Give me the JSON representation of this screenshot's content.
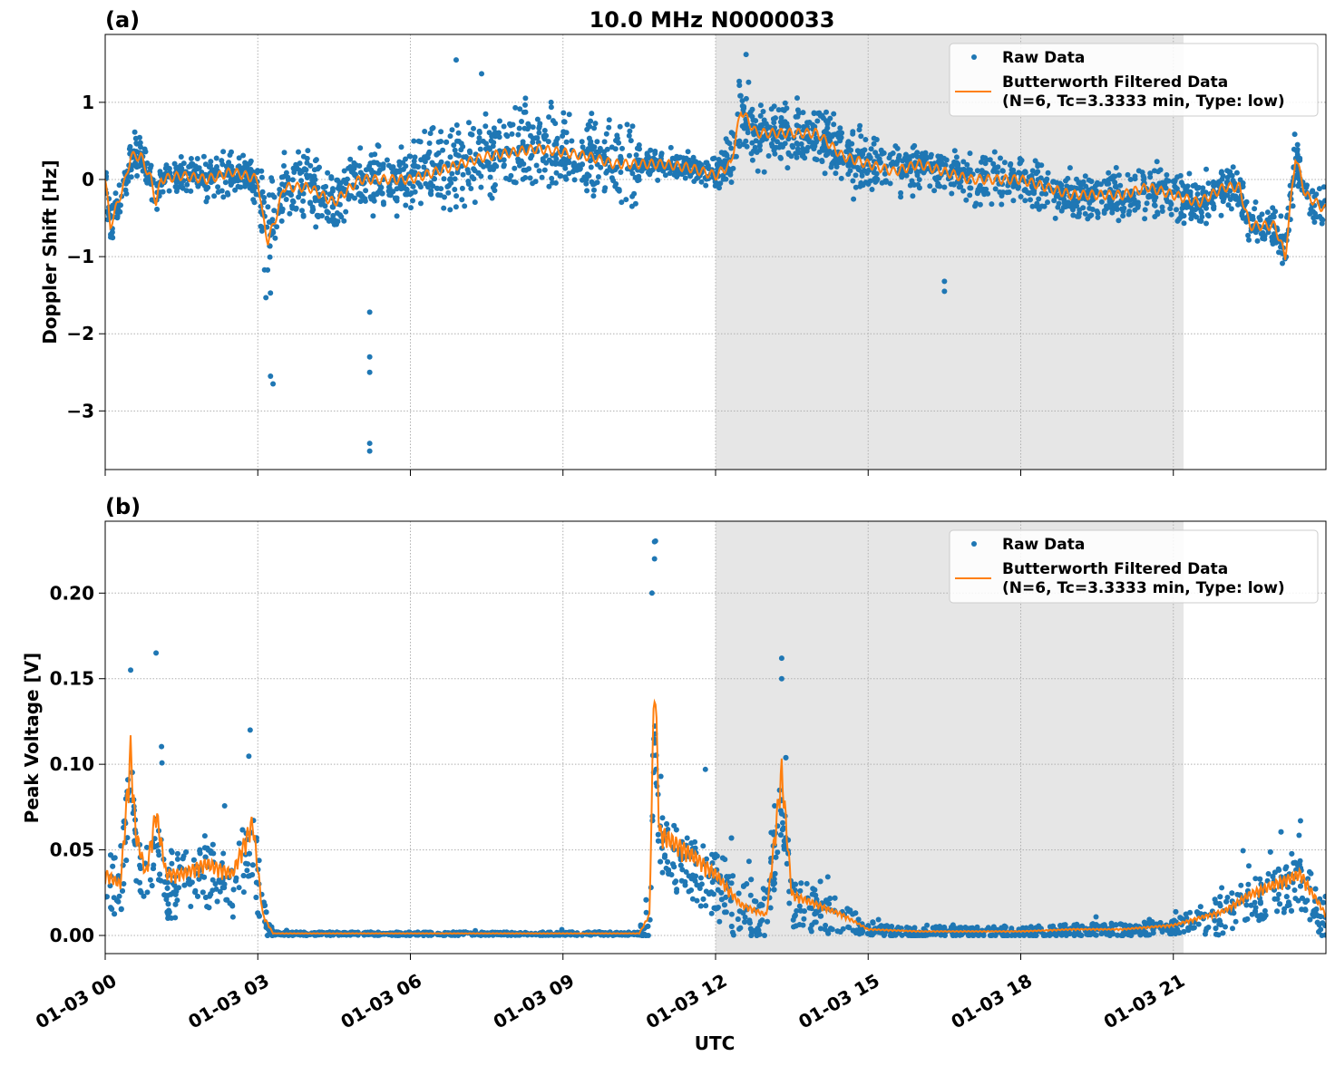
{
  "title": "10.0 MHz N0000033",
  "colors": {
    "raw": "#1f77b4",
    "filtered": "#ff7f0e",
    "shade": "#e6e6e6"
  },
  "chart_data": [
    {
      "type": "scatter",
      "panel_label": "(a)",
      "ylabel": "Doppler Shift [Hz]",
      "xlabel": "",
      "xlim_hours": [
        0,
        24
      ],
      "ylim": [
        -3.76,
        1.88
      ],
      "yticks": [
        1,
        0,
        -1,
        -2,
        -3
      ],
      "ytick_labels": [
        "1",
        "0",
        "−1",
        "−2",
        "−3"
      ],
      "grid": true,
      "shaded_interval_hours": [
        12,
        21.2
      ],
      "legend": {
        "placement": "top-right",
        "entries": [
          "Raw Data",
          "Butterworth Filtered Data",
          "(N=6, Tc=3.3333 min, Type: low)"
        ]
      },
      "filtered": [
        [
          0,
          0
        ],
        [
          0.1,
          -0.6
        ],
        [
          0.2,
          -0.4
        ],
        [
          0.4,
          0
        ],
        [
          0.5,
          0.3
        ],
        [
          0.7,
          0.3
        ],
        [
          0.9,
          0
        ],
        [
          1,
          -0.3
        ],
        [
          1.1,
          0
        ],
        [
          1.5,
          0.05
        ],
        [
          2,
          0
        ],
        [
          2.5,
          0.1
        ],
        [
          3,
          0
        ],
        [
          3.1,
          -0.5
        ],
        [
          3.2,
          -0.8
        ],
        [
          3.4,
          -0.4
        ],
        [
          3.5,
          -0.1
        ],
        [
          4,
          -0.1
        ],
        [
          4.5,
          -0.3
        ],
        [
          5,
          0
        ],
        [
          5.5,
          0
        ],
        [
          6,
          0
        ],
        [
          6.5,
          0.1
        ],
        [
          7,
          0.2
        ],
        [
          7.5,
          0.3
        ],
        [
          8,
          0.35
        ],
        [
          8.5,
          0.4
        ],
        [
          9,
          0.35
        ],
        [
          9.5,
          0.3
        ],
        [
          10,
          0.2
        ],
        [
          10.5,
          0.2
        ],
        [
          11,
          0.2
        ],
        [
          11.5,
          0.15
        ],
        [
          12,
          0.05
        ],
        [
          12.3,
          0.2
        ],
        [
          12.5,
          0.9
        ],
        [
          12.8,
          0.6
        ],
        [
          13,
          0.6
        ],
        [
          13.5,
          0.6
        ],
        [
          14,
          0.6
        ],
        [
          14.5,
          0.3
        ],
        [
          15,
          0.2
        ],
        [
          15.5,
          0.1
        ],
        [
          16,
          0.2
        ],
        [
          16.5,
          0.1
        ],
        [
          17,
          0
        ],
        [
          18,
          0
        ],
        [
          18.5,
          -0.1
        ],
        [
          19,
          -0.2
        ],
        [
          20,
          -0.2
        ],
        [
          20.5,
          -0.1
        ],
        [
          21,
          -0.2
        ],
        [
          21.5,
          -0.3
        ],
        [
          22,
          -0.1
        ],
        [
          22.3,
          -0.1
        ],
        [
          22.5,
          -0.6
        ],
        [
          23,
          -0.6
        ],
        [
          23.2,
          -1.0
        ],
        [
          23.4,
          0.3
        ],
        [
          23.6,
          -0.2
        ],
        [
          24,
          -0.4
        ]
      ],
      "raw_spread": [
        [
          0,
          0.3
        ],
        [
          3,
          0.3
        ],
        [
          3.1,
          1.0
        ],
        [
          3.5,
          0.5
        ],
        [
          6,
          0.45
        ],
        [
          6.3,
          0.6
        ],
        [
          10.4,
          0.6
        ],
        [
          10.6,
          0.2
        ],
        [
          12,
          0.2
        ],
        [
          12.2,
          0.45
        ],
        [
          15,
          0.45
        ],
        [
          15.2,
          0.35
        ],
        [
          24,
          0.35
        ]
      ],
      "raw_outliers": [
        [
          5.2,
          -1.72
        ],
        [
          5.2,
          -2.3
        ],
        [
          5.2,
          -2.5
        ],
        [
          5.2,
          -3.42
        ],
        [
          5.2,
          -3.52
        ],
        [
          3.3,
          -2.65
        ],
        [
          3.25,
          -2.55
        ],
        [
          16.5,
          -1.45
        ],
        [
          16.5,
          -1.32
        ],
        [
          12.6,
          1.62
        ],
        [
          6.9,
          1.55
        ],
        [
          7.4,
          1.37
        ]
      ]
    },
    {
      "type": "scatter",
      "panel_label": "(b)",
      "ylabel": "Peak Voltage [V]",
      "xlabel": "UTC",
      "xlim_hours": [
        0,
        24
      ],
      "ylim": [
        -0.0106,
        0.242
      ],
      "yticks": [
        0.2,
        0.15,
        0.1,
        0.05,
        0
      ],
      "ytick_labels": [
        "0.20",
        "0.15",
        "0.10",
        "0.05",
        "0.00"
      ],
      "xticks_hours": [
        0,
        3,
        6,
        9,
        12,
        15,
        18,
        21
      ],
      "xtick_labels": [
        "01-03 00",
        "01-03 03",
        "01-03 06",
        "01-03 09",
        "01-03 12",
        "01-03 15",
        "01-03 18",
        "01-03 21"
      ],
      "grid": true,
      "shaded_interval_hours": [
        12,
        21.2
      ],
      "legend": {
        "placement": "top-right",
        "entries": [
          "Raw Data",
          "Butterworth Filtered Data",
          "(N=6, Tc=3.3333 min, Type: low)"
        ]
      },
      "filtered": [
        [
          0,
          0.03
        ],
        [
          0.3,
          0.025
        ],
        [
          0.5,
          0.09
        ],
        [
          0.6,
          0.05
        ],
        [
          0.8,
          0.03
        ],
        [
          1,
          0.06
        ],
        [
          1.2,
          0.03
        ],
        [
          1.5,
          0.03
        ],
        [
          2,
          0.035
        ],
        [
          2.5,
          0.03
        ],
        [
          2.9,
          0.055
        ],
        [
          3.1,
          0.01
        ],
        [
          3.3,
          0.001
        ],
        [
          10.5,
          0.001
        ],
        [
          10.7,
          0.01
        ],
        [
          10.8,
          0.13
        ],
        [
          10.9,
          0.05
        ],
        [
          11.5,
          0.04
        ],
        [
          12,
          0.03
        ],
        [
          12.5,
          0.015
        ],
        [
          13,
          0.01
        ],
        [
          13.3,
          0.08
        ],
        [
          13.5,
          0.02
        ],
        [
          14,
          0.015
        ],
        [
          14.5,
          0.01
        ],
        [
          15,
          0.003
        ],
        [
          16,
          0.002
        ],
        [
          18,
          0.002
        ],
        [
          19,
          0.003
        ],
        [
          20,
          0.003
        ],
        [
          21,
          0.005
        ],
        [
          22,
          0.012
        ],
        [
          22.5,
          0.02
        ],
        [
          23,
          0.025
        ],
        [
          23.5,
          0.03
        ],
        [
          24,
          0.01
        ]
      ],
      "raw_spread": [
        [
          0,
          0.02
        ],
        [
          3,
          0.02
        ],
        [
          3.3,
          0.001
        ],
        [
          10.5,
          0.001
        ],
        [
          10.7,
          0.02
        ],
        [
          12,
          0.02
        ],
        [
          13,
          0.02
        ],
        [
          14.5,
          0.01
        ],
        [
          15,
          0.003
        ],
        [
          21,
          0.004
        ],
        [
          22,
          0.012
        ],
        [
          24,
          0.015
        ]
      ],
      "raw_outliers": [
        [
          10.8,
          0.23
        ],
        [
          10.8,
          0.22
        ],
        [
          10.75,
          0.2
        ],
        [
          1,
          0.165
        ],
        [
          0.5,
          0.155
        ],
        [
          13.3,
          0.162
        ],
        [
          13.3,
          0.15
        ],
        [
          2.85,
          0.12
        ],
        [
          11.8,
          0.097
        ],
        [
          23.5,
          0.067
        ]
      ]
    }
  ]
}
